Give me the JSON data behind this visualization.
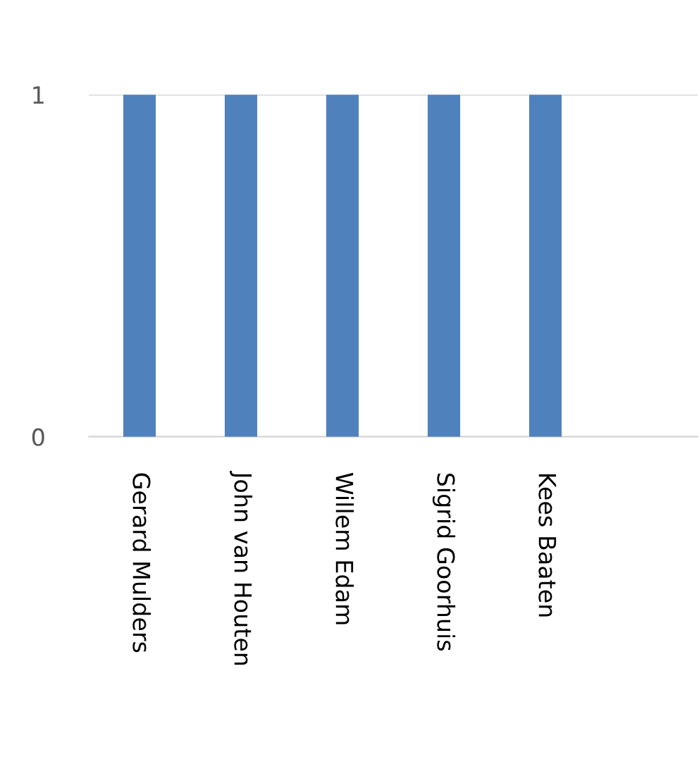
{
  "chart_data": {
    "type": "bar",
    "categories": [
      "Gerard Mulders",
      "John van Houten",
      "Willem Edam",
      "Sigrid Goorhuis",
      "Kees Baaten",
      null
    ],
    "values": [
      1,
      1,
      1,
      1,
      1,
      null
    ],
    "color": "#4f81bd",
    "ylim": [
      0,
      1
    ],
    "yticks": [
      0,
      1
    ],
    "grid": "y"
  }
}
